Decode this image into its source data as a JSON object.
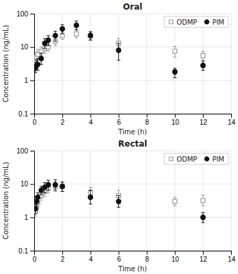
{
  "chart_data": [
    {
      "type": "scatter",
      "title": "Oral",
      "x_label": "Time (h)",
      "y_label": "Concentration (ng/mL)",
      "series": [
        {
          "name": "ODMP",
          "color": "#999999",
          "marker": "square-open",
          "x": [
            0.083,
            0.167,
            0.25,
            0.5,
            0.75,
            1.0,
            1.5,
            2.0,
            3.0,
            4.0,
            6.0,
            10.0,
            12.0
          ],
          "values": [
            3.5,
            5.0,
            6.0,
            7.5,
            9.0,
            10.0,
            15.0,
            22.0,
            25.0,
            22.0,
            13.0,
            7.5,
            5.5
          ],
          "err_lo": [
            1.2,
            1.5,
            1.5,
            2.0,
            2.5,
            2.5,
            4.0,
            5.0,
            6.0,
            5.0,
            3.0,
            2.5,
            1.5
          ],
          "err_hi": [
            1.5,
            2.0,
            2.5,
            2.5,
            3.0,
            3.0,
            5.0,
            6.0,
            7.0,
            5.0,
            5.0,
            3.0,
            2.0
          ]
        },
        {
          "name": "PIM",
          "color": "#111111",
          "marker": "circle",
          "x": [
            0.083,
            0.167,
            0.25,
            0.5,
            0.75,
            1.0,
            1.5,
            2.0,
            3.0,
            4.0,
            6.0,
            10.0,
            12.0
          ],
          "values": [
            2.5,
            2.8,
            3.0,
            4.5,
            13.0,
            16.0,
            22.0,
            35.0,
            45.0,
            22.0,
            8.0,
            1.8,
            2.8
          ],
          "err_lo": [
            0.8,
            0.8,
            1.0,
            1.5,
            4.0,
            5.0,
            7.0,
            10.0,
            12.0,
            6.0,
            4.0,
            0.6,
            0.8
          ],
          "err_hi": [
            1.0,
            1.2,
            1.5,
            2.0,
            5.0,
            6.0,
            8.0,
            12.0,
            15.0,
            7.0,
            5.0,
            0.5,
            1.0
          ]
        }
      ],
      "xlim": [
        0,
        14
      ],
      "ylim": [
        0.1,
        100
      ],
      "xticks": [
        0,
        2,
        4,
        6,
        8,
        10,
        12,
        14
      ],
      "yticks": [
        0.1,
        1,
        10,
        100
      ],
      "log": "y",
      "grid": true,
      "legend": "upper right"
    },
    {
      "type": "scatter",
      "title": "Rectal",
      "x_label": "Time (h)",
      "y_label": "Concentration (ng/mL)",
      "series": [
        {
          "name": "ODMP",
          "color": "#999999",
          "marker": "square-open",
          "x": [
            0.083,
            0.167,
            0.25,
            0.5,
            0.75,
            1.0,
            1.5,
            2.0,
            4.0,
            6.0,
            10.0,
            12.0
          ],
          "values": [
            1.5,
            2.0,
            2.8,
            4.5,
            6.0,
            7.5,
            8.5,
            8.5,
            5.5,
            4.5,
            3.0,
            3.2
          ],
          "err_lo": [
            0.4,
            0.6,
            0.8,
            1.2,
            1.8,
            2.0,
            2.5,
            2.5,
            2.0,
            1.5,
            0.8,
            1.0
          ],
          "err_hi": [
            0.5,
            0.8,
            1.0,
            1.5,
            2.0,
            2.5,
            3.0,
            3.0,
            2.5,
            2.0,
            1.0,
            1.5
          ]
        },
        {
          "name": "PIM",
          "color": "#111111",
          "marker": "circle",
          "x": [
            0.083,
            0.167,
            0.25,
            0.5,
            0.75,
            1.0,
            1.5,
            2.0,
            4.0,
            6.0,
            12.0
          ],
          "values": [
            1.8,
            3.0,
            4.0,
            6.5,
            8.0,
            9.5,
            9.5,
            8.5,
            4.0,
            3.0,
            1.0
          ],
          "err_lo": [
            0.5,
            0.9,
            1.2,
            1.8,
            2.5,
            3.0,
            3.0,
            2.5,
            1.5,
            1.0,
            0.3
          ],
          "err_hi": [
            0.6,
            1.2,
            1.5,
            2.0,
            3.0,
            3.5,
            4.0,
            3.0,
            2.5,
            1.5,
            0.4
          ]
        }
      ],
      "xlim": [
        0,
        14
      ],
      "ylim": [
        0.1,
        100
      ],
      "xticks": [
        0,
        2,
        4,
        6,
        8,
        10,
        12,
        14
      ],
      "yticks": [
        0.1,
        1,
        10,
        100
      ],
      "log": "y",
      "grid": true,
      "legend": "upper right"
    }
  ]
}
